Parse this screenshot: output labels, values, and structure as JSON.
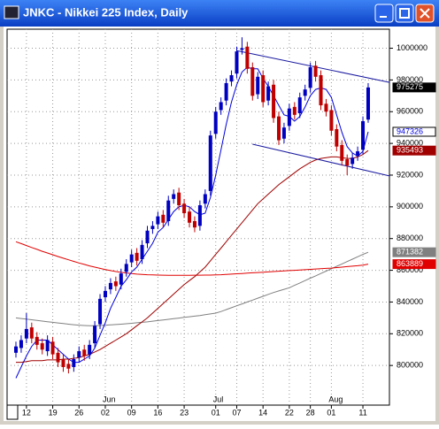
{
  "window_title": "JNKC - Nikkei 225 Index, Daily",
  "chart_data": {
    "type": "candlestick",
    "categories": [
      null,
      null,
      "12",
      null,
      null,
      null,
      null,
      "19",
      null,
      null,
      null,
      null,
      "26",
      null,
      null,
      null,
      null,
      "02",
      null,
      null,
      null,
      null,
      "09",
      null,
      null,
      null,
      null,
      "16",
      null,
      null,
      null,
      null,
      "23",
      null,
      null,
      null,
      null,
      null,
      "01",
      null,
      null,
      null,
      "07",
      null,
      null,
      null,
      null,
      "14",
      null,
      null,
      null,
      null,
      "22",
      null,
      null,
      null,
      "28",
      null,
      null,
      null,
      "01",
      null,
      null,
      null,
      null,
      null,
      "11",
      null
    ],
    "months": [
      "Jun",
      "Jul",
      "Aug"
    ],
    "open": [
      8080,
      8110,
      8170,
      8240,
      8180,
      8140,
      8090,
      8150,
      8080,
      8040,
      8010,
      7990,
      8050,
      8100,
      8070,
      8140,
      8260,
      8430,
      8480,
      8530,
      8510,
      8590,
      8650,
      8710,
      8670,
      8770,
      8860,
      8890,
      8950,
      8910,
      9050,
      9090,
      9020,
      8970,
      8910,
      8880,
      9020,
      9100,
      9460,
      9610,
      9670,
      9790,
      9840,
      9990,
      10010,
      9880,
      9710,
      9830,
      9670,
      9770,
      9570,
      9430,
      9510,
      9630,
      9590,
      9700,
      9750,
      9890,
      9830,
      9650,
      9610,
      9490,
      9390,
      9300,
      9270,
      9320,
      9360,
      9550
    ],
    "high": [
      8150,
      8190,
      8330,
      8270,
      8210,
      8170,
      8190,
      8180,
      8110,
      8070,
      8040,
      8070,
      8120,
      8130,
      8160,
      8280,
      8450,
      8500,
      8550,
      8560,
      8610,
      8670,
      8730,
      8740,
      8790,
      8880,
      8910,
      8970,
      8980,
      9070,
      9110,
      9120,
      9050,
      9000,
      8940,
      9040,
      9110,
      9480,
      9630,
      9690,
      9810,
      9860,
      10010,
      10069,
      10040,
      9910,
      9850,
      9860,
      9790,
      9800,
      9600,
      9530,
      9650,
      9660,
      9720,
      9770,
      9910,
      9920,
      9860,
      9680,
      9640,
      9520,
      9420,
      9330,
      9340,
      9380,
      9570,
      9780
    ],
    "low": [
      8050,
      8080,
      8140,
      8140,
      8100,
      8070,
      8060,
      8040,
      7990,
      7960,
      7950,
      7960,
      8020,
      8030,
      8040,
      8110,
      8230,
      8400,
      8450,
      8470,
      8480,
      8560,
      8620,
      8630,
      8640,
      8740,
      8830,
      8860,
      8870,
      8880,
      9020,
      8980,
      8930,
      8870,
      8840,
      8850,
      8990,
      9070,
      9430,
      9580,
      9640,
      9760,
      9810,
      9960,
      9840,
      9670,
      9680,
      9630,
      9640,
      9530,
      9390,
      9400,
      9480,
      9550,
      9560,
      9670,
      9720,
      9790,
      9610,
      9570,
      9450,
      9350,
      9260,
      9200,
      9240,
      9290,
      9330,
      9530
    ],
    "close": [
      8120,
      8160,
      8230,
      8170,
      8130,
      8100,
      8160,
      8070,
      8020,
      7990,
      7980,
      8040,
      8090,
      8060,
      8130,
      8250,
      8420,
      8470,
      8520,
      8500,
      8580,
      8640,
      8700,
      8660,
      8760,
      8850,
      8880,
      8940,
      8900,
      9040,
      9080,
      9010,
      8960,
      8900,
      8870,
      9010,
      9080,
      9450,
      9600,
      9660,
      9780,
      9830,
      9980,
      10000,
      9870,
      9700,
      9820,
      9660,
      9760,
      9560,
      9420,
      9500,
      9620,
      9580,
      9690,
      9740,
      9880,
      9820,
      9640,
      9600,
      9480,
      9380,
      9290,
      9260,
      9310,
      9350,
      9540,
      9752.75
    ],
    "up_color": "#0000c0",
    "down_color": "#c00000",
    "overlays": [
      {
        "color": "#808080",
        "values": [
          8300,
          8296,
          8292,
          8288,
          8284,
          8280,
          8276,
          8272,
          8268,
          8264,
          8260,
          8257,
          8254,
          8252,
          8250,
          8250,
          8252,
          8254,
          8256,
          8258,
          8260,
          8263,
          8266,
          8269,
          8272,
          8275,
          8279,
          8283,
          8287,
          8291,
          8295,
          8299,
          8303,
          8307,
          8311,
          8315,
          8320,
          8325,
          8330,
          8340,
          8352,
          8364,
          8376,
          8388,
          8400,
          8412,
          8424,
          8436,
          8448,
          8460,
          8470,
          8480,
          8490,
          8505,
          8520,
          8535,
          8550,
          8565,
          8580,
          8595,
          8610,
          8625,
          8640,
          8655,
          8670,
          8685,
          8700,
          8713.82
        ]
      },
      {
        "color": "#e00000",
        "values": [
          8780,
          8768,
          8756,
          8744,
          8732,
          8720,
          8709,
          8698,
          8687,
          8676,
          8666,
          8656,
          8646,
          8637,
          8628,
          8620,
          8612,
          8605,
          8598,
          8592,
          8587,
          8583,
          8579,
          8576,
          8574,
          8572,
          8571,
          8570,
          8569,
          8568,
          8568,
          8568,
          8568,
          8568,
          8569,
          8569,
          8570,
          8570,
          8571,
          8572,
          8574,
          8576,
          8578,
          8580,
          8582,
          8584,
          8586,
          8588,
          8590,
          8592,
          8594,
          8596,
          8598,
          8600,
          8602,
          8604,
          8606,
          8608,
          8610,
          8612,
          8614,
          8617,
          8620,
          8623,
          8626,
          8629,
          8633,
          8638.89
        ]
      },
      {
        "color": "#a00000",
        "values": [
          8020,
          8020,
          8025,
          8030,
          8030,
          8030,
          8035,
          8035,
          8035,
          8040,
          8040,
          8045,
          8050,
          8060,
          8070,
          8085,
          8100,
          8120,
          8140,
          8160,
          8180,
          8200,
          8225,
          8250,
          8275,
          8300,
          8330,
          8360,
          8390,
          8420,
          8450,
          8480,
          8510,
          8535,
          8560,
          8590,
          8620,
          8660,
          8700,
          8740,
          8780,
          8820,
          8860,
          8900,
          8940,
          8980,
          9020,
          9050,
          9080,
          9110,
          9140,
          9165,
          9190,
          9215,
          9240,
          9260,
          9280,
          9295,
          9305,
          9310,
          9315,
          9315,
          9310,
          9305,
          9305,
          9315,
          9330,
          9354.93
        ]
      },
      {
        "color": "#0000e0",
        "values": [
          7920,
          7990,
          8060,
          8120,
          8160,
          8160,
          8160,
          8130,
          8100,
          8070,
          8040,
          8020,
          8020,
          8040,
          8060,
          8110,
          8190,
          8270,
          8360,
          8430,
          8500,
          8540,
          8590,
          8620,
          8670,
          8720,
          8770,
          8840,
          8870,
          8920,
          8970,
          9000,
          9010,
          9000,
          8970,
          8950,
          8960,
          9060,
          9200,
          9360,
          9520,
          9660,
          9770,
          9850,
          9880,
          9870,
          9870,
          9810,
          9760,
          9700,
          9640,
          9580,
          9570,
          9540,
          9570,
          9630,
          9700,
          9740,
          9750,
          9740,
          9690,
          9580,
          9470,
          9380,
          9340,
          9320,
          9350,
          9473.26
        ]
      }
    ],
    "trendlines": [
      {
        "color": "#1818a0",
        "start": [
          42,
          9985
        ],
        "end": [
          72,
          9785
        ]
      },
      {
        "color": "#1818a0",
        "start": [
          45,
          9395
        ],
        "end": [
          72,
          9195
        ]
      }
    ],
    "price_flags": [
      {
        "value": 9752.75,
        "label": "975275",
        "bg": "#000000",
        "fg": "#ffffff"
      },
      {
        "value": 9473.26,
        "label": "947326",
        "bg": "#ffffff",
        "fg": "#0000e0"
      },
      {
        "value": 9354.93,
        "label": "935493",
        "bg": "#a00000",
        "fg": "#ffffff"
      },
      {
        "value": 8713.82,
        "label": "871382",
        "bg": "#808080",
        "fg": "#ffffff"
      },
      {
        "value": 8638.89,
        "label": "863889",
        "bg": "#e00000",
        "fg": "#ffffff"
      }
    ],
    "ylim": [
      7750,
      10120
    ],
    "yticks": [
      {
        "value": 8000,
        "label": "800000"
      },
      {
        "value": 8200,
        "label": "820000"
      },
      {
        "value": 8400,
        "label": "840000"
      },
      {
        "value": 8600,
        "label": "860000"
      },
      {
        "value": 8800,
        "label": "880000"
      },
      {
        "value": 9000,
        "label": "900000"
      },
      {
        "value": 9200,
        "label": "920000"
      },
      {
        "value": 9400,
        "label": "940000"
      },
      {
        "value": 9600,
        "label": "960000"
      },
      {
        "value": 9800,
        "label": "980000"
      },
      {
        "value": 10000,
        "label": "1000000"
      }
    ],
    "grid": true
  }
}
